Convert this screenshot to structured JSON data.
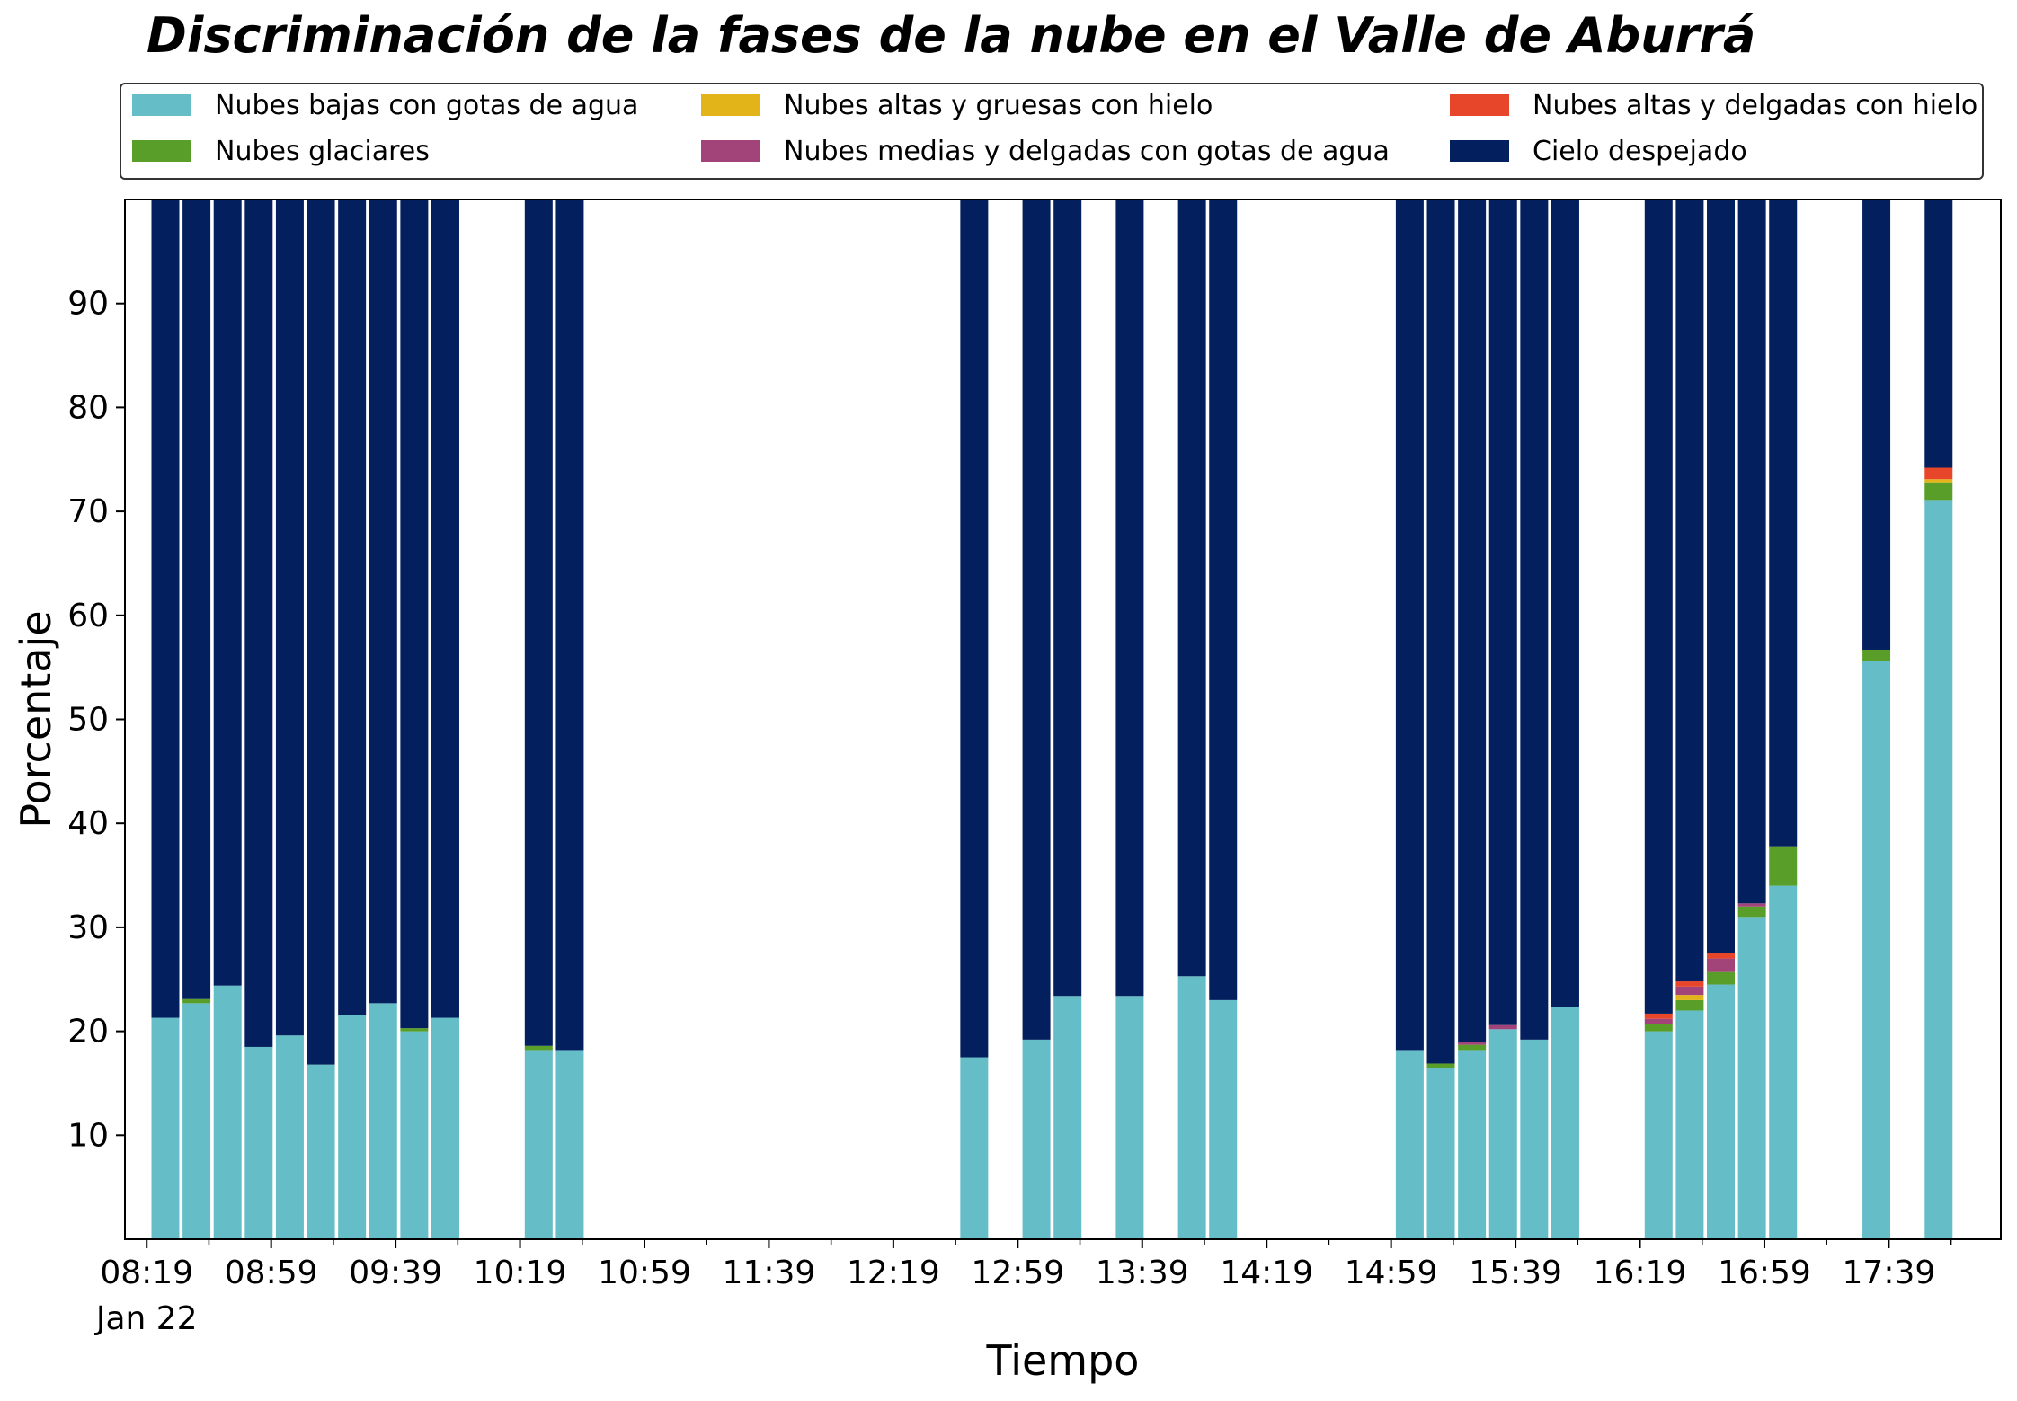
{
  "chart_data": {
    "type": "bar",
    "stacked": true,
    "title": "Discriminación de la fases de la nube en el Valle de Aburrá",
    "xlabel": "Tiempo",
    "ylabel": "Porcentaje",
    "ylim": [
      0,
      100
    ],
    "yticks": [
      10,
      20,
      30,
      40,
      50,
      60,
      70,
      80,
      90
    ],
    "xlim": [
      "08:12",
      "18:15"
    ],
    "xticks": [
      "08:19",
      "08:59",
      "09:39",
      "10:19",
      "10:59",
      "11:39",
      "12:19",
      "12:59",
      "13:39",
      "14:19",
      "14:59",
      "15:39",
      "16:19",
      "16:59",
      "17:39"
    ],
    "xtick_sublabel": "Jan 22",
    "grid": false,
    "legend_position": "top",
    "x": [
      "08:25",
      "08:35",
      "08:45",
      "08:55",
      "09:05",
      "09:15",
      "09:25",
      "09:35",
      "09:45",
      "09:55",
      "10:25",
      "10:35",
      "12:45",
      "13:05",
      "13:15",
      "13:35",
      "13:55",
      "14:05",
      "15:05",
      "15:15",
      "15:25",
      "15:35",
      "15:45",
      "15:55",
      "16:25",
      "16:35",
      "16:45",
      "16:55",
      "17:05",
      "17:35",
      "17:55"
    ],
    "series": [
      {
        "name": "Nubes bajas con gotas de agua",
        "color": "#65bdc8",
        "values": [
          21.3,
          22.7,
          24.4,
          18.5,
          19.6,
          16.8,
          21.6,
          22.7,
          20.0,
          21.3,
          18.2,
          18.2,
          17.5,
          19.2,
          23.4,
          23.4,
          25.3,
          23.0,
          18.2,
          16.5,
          18.2,
          20.2,
          19.2,
          22.3,
          20.0,
          22.0,
          24.5,
          31.0,
          34.0,
          55.6,
          71.1
        ]
      },
      {
        "name": "Nubes glaciares",
        "color": "#5a9e2a",
        "values": [
          0,
          0.4,
          0,
          0,
          0,
          0,
          0,
          0,
          0.3,
          0,
          0.4,
          0,
          0,
          0,
          0,
          0,
          0,
          0,
          0,
          0.4,
          0.5,
          0,
          0,
          0,
          0.7,
          1.0,
          1.2,
          1.0,
          3.8,
          1.1,
          1.7
        ]
      },
      {
        "name": "Nubes altas y gruesas con hielo",
        "color": "#e3b41a",
        "values": [
          0,
          0,
          0,
          0,
          0,
          0,
          0,
          0,
          0,
          0,
          0,
          0,
          0,
          0,
          0,
          0,
          0,
          0,
          0,
          0,
          0,
          0,
          0,
          0,
          0,
          0.5,
          0,
          0,
          0,
          0,
          0.3
        ]
      },
      {
        "name": "Nubes medias y delgadas con gotas de agua",
        "color": "#a2437a",
        "values": [
          0,
          0,
          0,
          0,
          0,
          0,
          0,
          0,
          0,
          0,
          0,
          0,
          0,
          0,
          0,
          0,
          0,
          0,
          0,
          0,
          0.3,
          0.4,
          0,
          0,
          0.5,
          0.8,
          1.3,
          0.3,
          0,
          0,
          0
        ]
      },
      {
        "name": "Nubes altas y delgadas con hielo",
        "color": "#e8462a",
        "values": [
          0,
          0,
          0,
          0,
          0,
          0,
          0,
          0,
          0,
          0,
          0,
          0,
          0,
          0,
          0,
          0,
          0,
          0,
          0,
          0,
          0,
          0,
          0,
          0,
          0.5,
          0.5,
          0.5,
          0,
          0,
          0,
          1.1
        ]
      },
      {
        "name": "Cielo despejado",
        "color": "#031f5d",
        "values": [
          78.7,
          76.9,
          75.6,
          81.5,
          80.4,
          83.2,
          78.4,
          77.3,
          79.7,
          78.7,
          81.4,
          81.8,
          82.5,
          80.8,
          76.6,
          76.6,
          74.7,
          77.0,
          81.8,
          83.1,
          81.0,
          79.4,
          80.8,
          77.7,
          78.3,
          75.2,
          72.5,
          67.7,
          62.2,
          43.3,
          25.8
        ]
      }
    ]
  }
}
